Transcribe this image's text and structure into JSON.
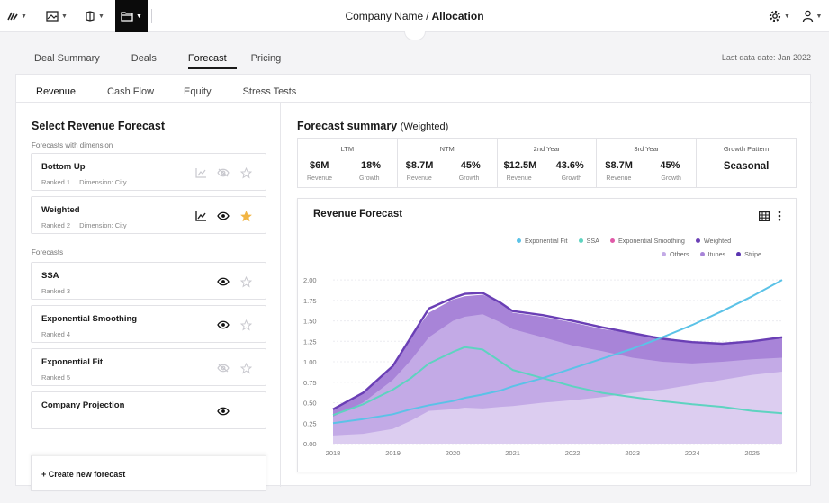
{
  "header": {
    "company": "Company Name",
    "separator": "/",
    "page": "Allocation"
  },
  "main_tabs": [
    {
      "label": "Deal Summary",
      "active": false
    },
    {
      "label": "Deals",
      "active": false
    },
    {
      "label": "Forecast",
      "active": true
    },
    {
      "label": "Pricing",
      "active": false
    }
  ],
  "last_data_date": "Last data date:  Jan  2022",
  "sub_tabs": [
    {
      "label": "Revenue",
      "active": true
    },
    {
      "label": "Cash Flow",
      "active": false
    },
    {
      "label": "Equity",
      "active": false
    },
    {
      "label": "Stress Tests",
      "active": false
    }
  ],
  "left_panel": {
    "title": "Select Revenue Forecast",
    "section_with_dimension": "Forecasts with dimension",
    "section_forecasts": "Forecasts",
    "create_label": "+ Create new forecast"
  },
  "forecasts_with_dimension": [
    {
      "name": "Bottom Up",
      "rank": "Ranked 1",
      "dimension": "Dimension: City",
      "visible": false,
      "starred": false,
      "chart_enabled": false
    },
    {
      "name": "Weighted",
      "rank": "Ranked 2",
      "dimension": "Dimension: City",
      "visible": true,
      "starred": true,
      "chart_enabled": true
    }
  ],
  "forecasts": [
    {
      "name": "SSA",
      "rank": "Ranked 3",
      "visible": true,
      "starred": false
    },
    {
      "name": "Exponential Smoothing",
      "rank": "Ranked 4",
      "visible": true,
      "starred": false
    },
    {
      "name": "Exponential Fit",
      "rank": "Ranked 5",
      "visible": false,
      "starred": false
    },
    {
      "name": "Company Projection",
      "rank": "",
      "visible": true,
      "starred": null
    }
  ],
  "summary": {
    "title": "Forecast summary",
    "subtitle": "(Weighted)",
    "columns": [
      {
        "head": "LTM",
        "revenue": "$6M",
        "growth": "18%"
      },
      {
        "head": "NTM",
        "revenue": "$8.7M",
        "growth": "45%"
      },
      {
        "head": "2nd Year",
        "revenue": "$12.5M",
        "growth": "43.6%"
      },
      {
        "head": "3rd Year",
        "revenue": "$8.7M",
        "growth": "45%"
      }
    ],
    "revenue_label": "Revenue",
    "growth_label": "Growth",
    "pattern_head": "Growth Pattern",
    "pattern_value": "Seasonal"
  },
  "chart_data": {
    "type": "area",
    "title": "Revenue Forecast",
    "x_ticks": [
      "2018",
      "2019",
      "2020",
      "2021",
      "2022",
      "2023",
      "2024",
      "2025"
    ],
    "y_ticks": [
      "0.00",
      "0.25",
      "0.50",
      "0.75",
      "1.00",
      "1.25",
      "1.50",
      "1.75",
      "2.00"
    ],
    "ylim": [
      0,
      2.1
    ],
    "x": [
      2018.0,
      2018.5,
      2019.0,
      2019.3,
      2019.6,
      2020.0,
      2020.2,
      2020.5,
      2020.8,
      2021.0,
      2021.5,
      2022.0,
      2022.5,
      2023.0,
      2023.5,
      2024.0,
      2024.5,
      2025.0,
      2025.5
    ],
    "legend": [
      {
        "name": "Exponential Fit",
        "color": "#5bc2e7"
      },
      {
        "name": "SSA",
        "color": "#5ed3c0"
      },
      {
        "name": "Exponential Smoothing",
        "color": "#e05aa8"
      },
      {
        "name": "Weighted",
        "color": "#6a3fb5"
      },
      {
        "name": "Others",
        "color": "#c3aae6"
      },
      {
        "name": "Itunes",
        "color": "#a884d8"
      },
      {
        "name": "Stripe",
        "color": "#5a34b0"
      }
    ],
    "series": [
      {
        "name": "Others",
        "kind": "area",
        "color": "#dccdf0",
        "values": [
          0.1,
          0.12,
          0.18,
          0.28,
          0.4,
          0.42,
          0.44,
          0.43,
          0.45,
          0.46,
          0.5,
          0.53,
          0.57,
          0.62,
          0.66,
          0.72,
          0.78,
          0.84,
          0.88
        ]
      },
      {
        "name": "Itunes",
        "kind": "area",
        "color": "#c3aae6",
        "values": [
          0.33,
          0.5,
          0.78,
          1.02,
          1.3,
          1.5,
          1.55,
          1.58,
          1.48,
          1.4,
          1.3,
          1.2,
          1.13,
          1.05,
          1.0,
          0.98,
          1.0,
          1.03,
          1.05
        ]
      },
      {
        "name": "Stripe",
        "kind": "area",
        "color": "#a884d8",
        "values": [
          0.42,
          0.62,
          0.95,
          1.3,
          1.6,
          1.76,
          1.8,
          1.82,
          1.72,
          1.6,
          1.55,
          1.48,
          1.4,
          1.35,
          1.3,
          1.24,
          1.22,
          1.25,
          1.3
        ]
      },
      {
        "name": "Weighted",
        "kind": "line",
        "color": "#6a3fb5",
        "values": [
          0.42,
          0.62,
          0.95,
          1.3,
          1.65,
          1.78,
          1.83,
          1.84,
          1.72,
          1.62,
          1.57,
          1.5,
          1.42,
          1.35,
          1.28,
          1.24,
          1.22,
          1.25,
          1.3
        ]
      },
      {
        "name": "SSA",
        "kind": "line",
        "color": "#5ed3c0",
        "values": [
          0.35,
          0.48,
          0.66,
          0.8,
          0.98,
          1.12,
          1.18,
          1.15,
          1.0,
          0.9,
          0.8,
          0.7,
          0.62,
          0.57,
          0.52,
          0.48,
          0.45,
          0.4,
          0.37
        ]
      },
      {
        "name": "Exponential Fit",
        "kind": "line",
        "color": "#5bc2e7",
        "values": [
          0.25,
          0.3,
          0.36,
          0.42,
          0.47,
          0.52,
          0.56,
          0.6,
          0.65,
          0.7,
          0.8,
          0.92,
          1.04,
          1.16,
          1.3,
          1.45,
          1.62,
          1.8,
          2.0
        ]
      }
    ]
  }
}
